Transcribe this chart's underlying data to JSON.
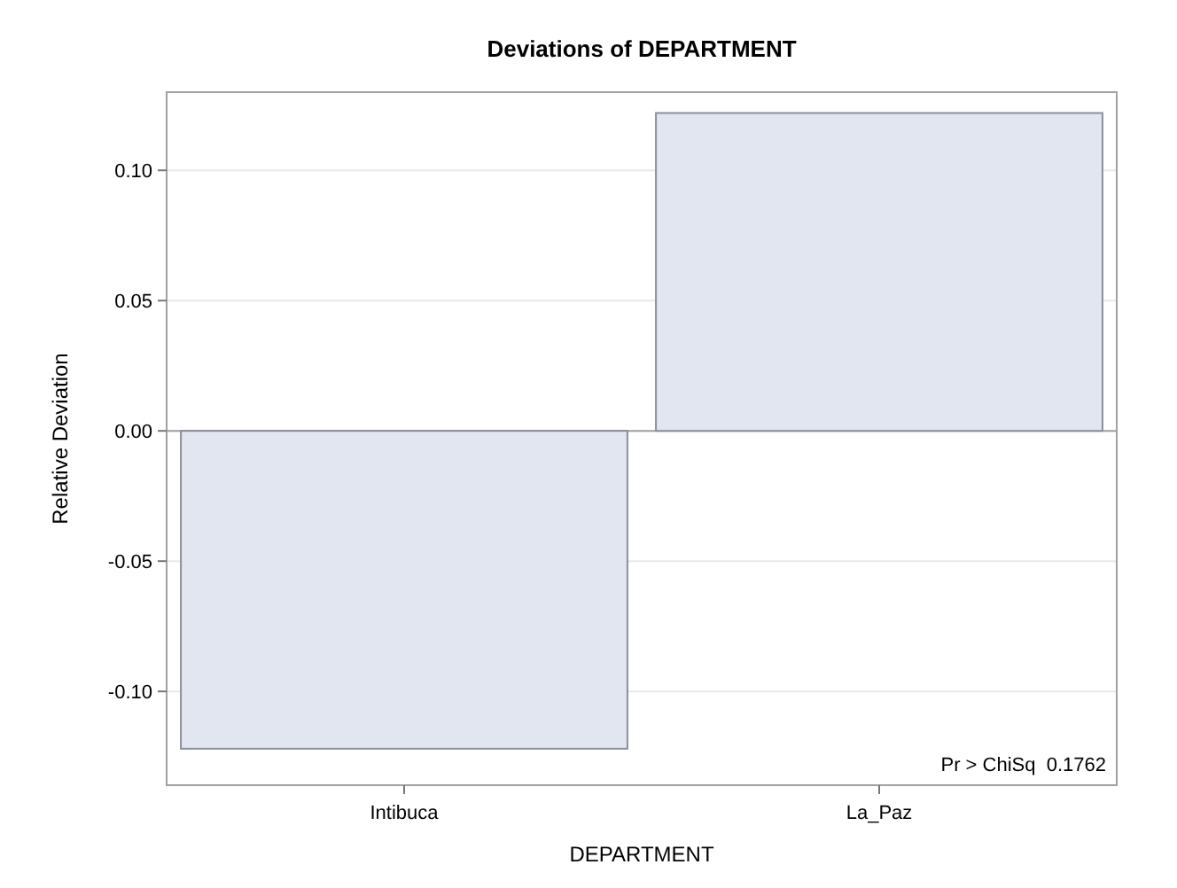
{
  "chart_data": {
    "type": "bar",
    "title": "Deviations of DEPARTMENT",
    "xlabel": "DEPARTMENT",
    "ylabel": "Relative Deviation",
    "categories": [
      "Intibuca",
      "La_Paz"
    ],
    "values": [
      -0.122,
      0.122
    ],
    "color": "#e1e6f0",
    "ylim": [
      -0.136,
      0.13
    ],
    "yticks": [
      {
        "value": -0.1,
        "label": "-0.10"
      },
      {
        "value": -0.05,
        "label": "-0.05"
      },
      {
        "value": 0,
        "label": "0.00"
      },
      {
        "value": 0.05,
        "label": "0.05"
      },
      {
        "value": 0.1,
        "label": "0.10"
      }
    ],
    "grid": "y",
    "ref_lines": [
      {
        "axis": "y",
        "value": 0,
        "color": "#a0a0a0"
      }
    ],
    "annotations": [
      "Pr > ChiSq  0.1762"
    ]
  }
}
